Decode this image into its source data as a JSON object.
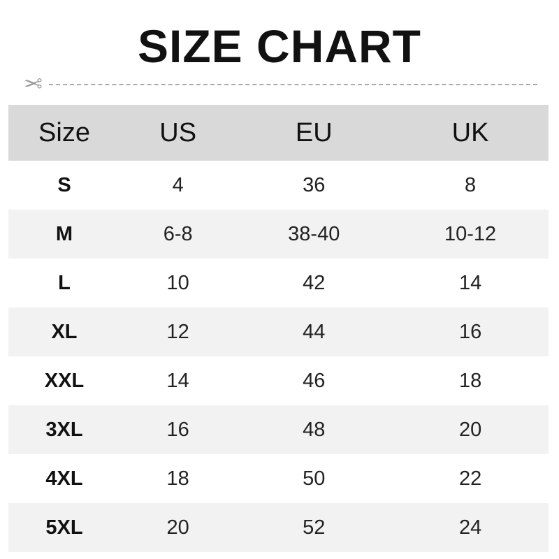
{
  "title": "SIZE CHART",
  "cutline_icon": "scissors-icon",
  "colors": {
    "header_bg": "#d9d9d9",
    "alt_row_bg": "#f2f2f2"
  },
  "table": {
    "headers": [
      "Size",
      "US",
      "EU",
      "UK"
    ],
    "rows": [
      [
        "S",
        "4",
        "36",
        "8"
      ],
      [
        "M",
        "6-8",
        "38-40",
        "10-12"
      ],
      [
        "L",
        "10",
        "42",
        "14"
      ],
      [
        "XL",
        "12",
        "44",
        "16"
      ],
      [
        "XXL",
        "14",
        "46",
        "18"
      ],
      [
        "3XL",
        "16",
        "48",
        "20"
      ],
      [
        "4XL",
        "18",
        "50",
        "22"
      ],
      [
        "5XL",
        "20",
        "52",
        "24"
      ]
    ]
  }
}
